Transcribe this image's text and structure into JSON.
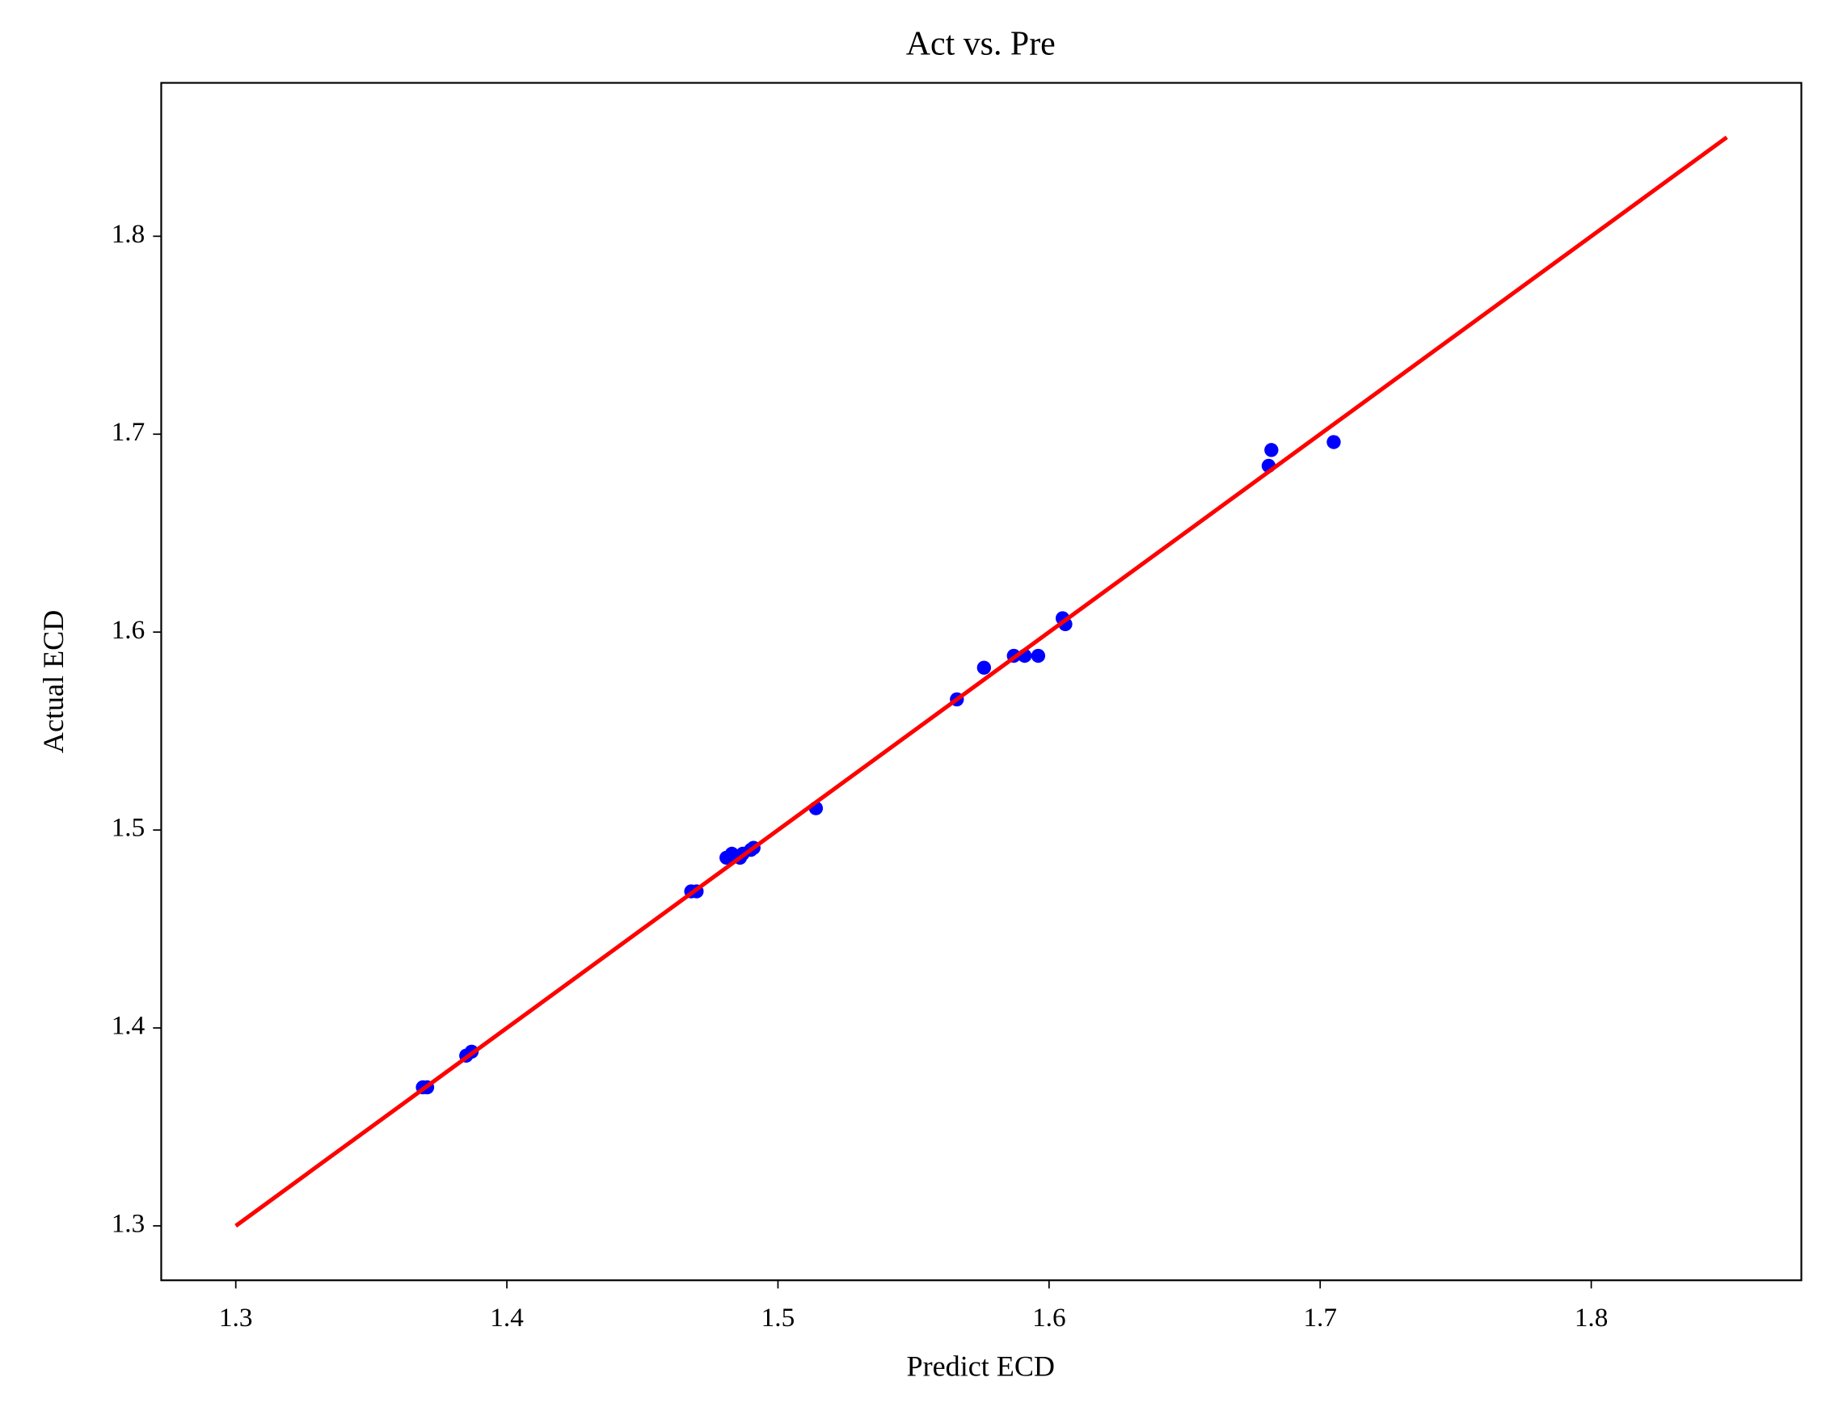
{
  "chart_data": {
    "type": "scatter",
    "title": "Act vs. Pre",
    "x_label": "Predict ECD",
    "y_label": "Actual ECD",
    "xlim": [
      1.2725,
      1.8775
    ],
    "ylim": [
      1.2725,
      1.8775
    ],
    "xticks": [
      1.3,
      1.4,
      1.5,
      1.6,
      1.7,
      1.8
    ],
    "yticks": [
      1.3,
      1.4,
      1.5,
      1.6,
      1.7,
      1.8
    ],
    "series": [
      {
        "color": "#0000ff",
        "x": [
          1.369,
          1.3706,
          1.385,
          1.387,
          1.468,
          1.47,
          1.481,
          1.483,
          1.486,
          1.487,
          1.49,
          1.491,
          1.514,
          1.566,
          1.576,
          1.587,
          1.591,
          1.596,
          1.605,
          1.606,
          1.681,
          1.682,
          1.705
        ],
        "values": [
          1.37,
          1.37,
          1.386,
          1.388,
          1.469,
          1.469,
          1.486,
          1.488,
          1.486,
          1.488,
          1.49,
          1.491,
          1.511,
          1.566,
          1.582,
          1.588,
          1.588,
          1.588,
          1.607,
          1.604,
          1.684,
          1.692,
          1.696
        ]
      }
    ],
    "line": {
      "color": "#ff0000",
      "x": [
        1.3,
        1.85
      ],
      "y": [
        1.3,
        1.85
      ]
    }
  }
}
